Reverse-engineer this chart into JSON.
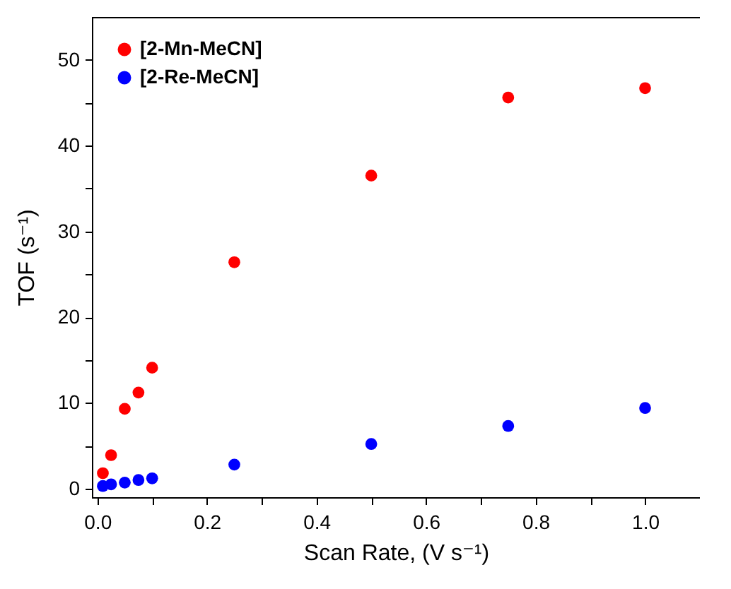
{
  "chart_data": {
    "type": "scatter",
    "xlabel": "Scan Rate, (V s⁻¹)",
    "ylabel": "TOF (s⁻¹)",
    "x": [
      0.01,
      0.025,
      0.05,
      0.075,
      0.1,
      0.25,
      0.5,
      0.75,
      1.0
    ],
    "series": [
      {
        "name": "[2-Mn-MeCN]",
        "color": "#ff0000",
        "values": [
          1.8,
          3.9,
          9.3,
          11.2,
          14.1,
          26.4,
          36.5,
          45.6,
          46.7
        ]
      },
      {
        "name": "[2-Re-MeCN]",
        "color": "#0000ff",
        "values": [
          0.3,
          0.5,
          0.7,
          1.0,
          1.2,
          2.8,
          5.2,
          7.3,
          9.4
        ]
      }
    ],
    "xlim": [
      -0.01,
      1.1
    ],
    "ylim": [
      -1,
      55
    ],
    "xticks": [
      {
        "value": 0,
        "label": "0.0"
      },
      {
        "value": 0.1,
        "label": null
      },
      0.2,
      {
        "value": 0.3,
        "label": null
      },
      0.4,
      {
        "value": 0.5,
        "label": null
      },
      0.6,
      {
        "value": 0.7,
        "label": null
      },
      0.8,
      {
        "value": 0.9,
        "label": null
      },
      {
        "value": 1,
        "label": "1.0"
      }
    ],
    "yticks": [
      0,
      {
        "value": 5,
        "label": null
      },
      10,
      {
        "value": 15,
        "label": null
      },
      20,
      {
        "value": 25,
        "label": null
      },
      30,
      {
        "value": 35,
        "label": null
      },
      40,
      {
        "value": 45,
        "label": null
      },
      50
    ],
    "legend": "top left",
    "grid": false,
    "marker": "circle"
  }
}
